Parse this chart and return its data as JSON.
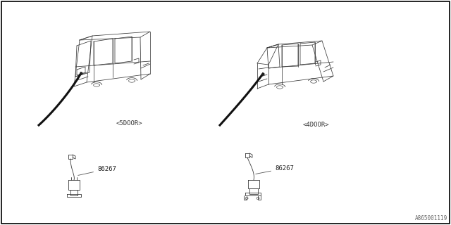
{
  "bg_color": "#ffffff",
  "border_color": "#000000",
  "diagram_id": "A865001119",
  "part_number": "86267",
  "label_5door": "<5DOOR>",
  "label_4door": "<4DOOR>",
  "lc": "#3a3a3a",
  "lw_car": 0.55,
  "lw_cable": 2.2,
  "lw_part": 0.6,
  "font_size_label": 6.5,
  "font_size_part": 6.5,
  "font_size_id": 5.5
}
